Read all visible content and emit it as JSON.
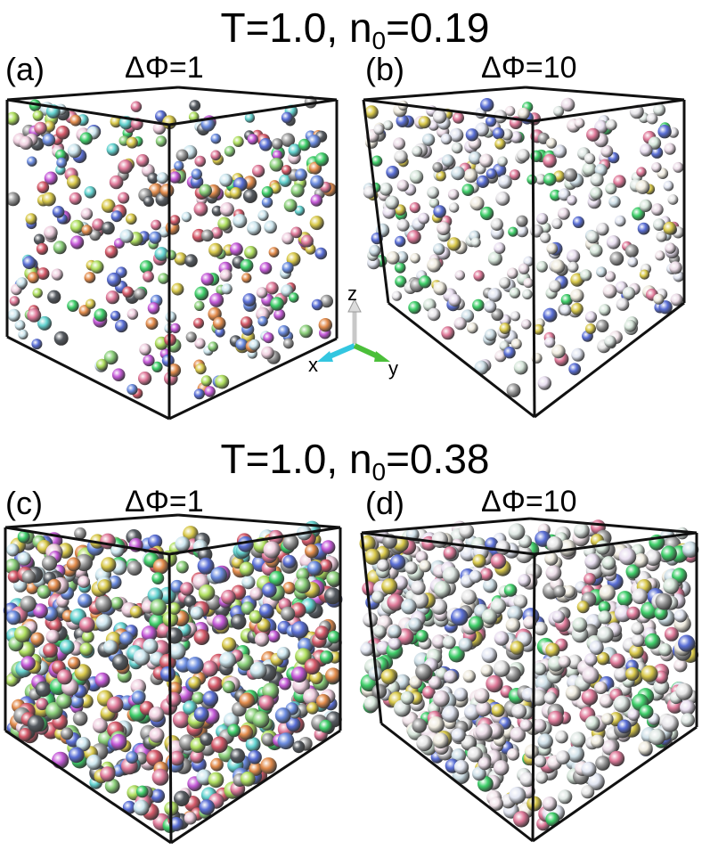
{
  "rows": [
    {
      "title_main": "T=1.0, n",
      "title_sub": "0",
      "title_rest": "=0.19"
    },
    {
      "title_main": "T=1.0, n",
      "title_sub": "0",
      "title_rest": "=0.38"
    }
  ],
  "panels": [
    {
      "letter": "(a)",
      "delta_phi": "ΔΦ=1",
      "density": 0.19,
      "delta_phi_value": 1
    },
    {
      "letter": "(b)",
      "delta_phi": "ΔΦ=10",
      "density": 0.19,
      "delta_phi_value": 10
    },
    {
      "letter": "(c)",
      "delta_phi": "ΔΦ=1",
      "density": 0.38,
      "delta_phi_value": 1
    },
    {
      "letter": "(d)",
      "delta_phi": "ΔΦ=10",
      "density": 0.38,
      "delta_phi_value": 10
    }
  ],
  "axes_labels": {
    "z": "z",
    "x": "x",
    "y": "y"
  },
  "colors": {
    "box_edge": "#111111",
    "axis_x": "#33c6e0",
    "axis_y": "#4bbf3a",
    "axis_z": "#e8e8e8",
    "palette_colorful": [
      "#e07a9a",
      "#5a6fd6",
      "#3fcf6a",
      "#d9c94a",
      "#9a9a9a",
      "#c55ad8",
      "#63d3d0",
      "#e38c4c",
      "#8bd07a",
      "#6b8ce0",
      "#d65a6a",
      "#b0e060",
      "#555a60",
      "#f0d0e0",
      "#cfe8f0"
    ],
    "palette_pale": [
      "#e8e6ea",
      "#dfe8e4",
      "#ecdde8",
      "#e2e6f2",
      "#f0ece0",
      "#d8e8dc",
      "#e9dff0",
      "#e6e6e6",
      "#cfe0e8",
      "#f2e4ea"
    ]
  }
}
